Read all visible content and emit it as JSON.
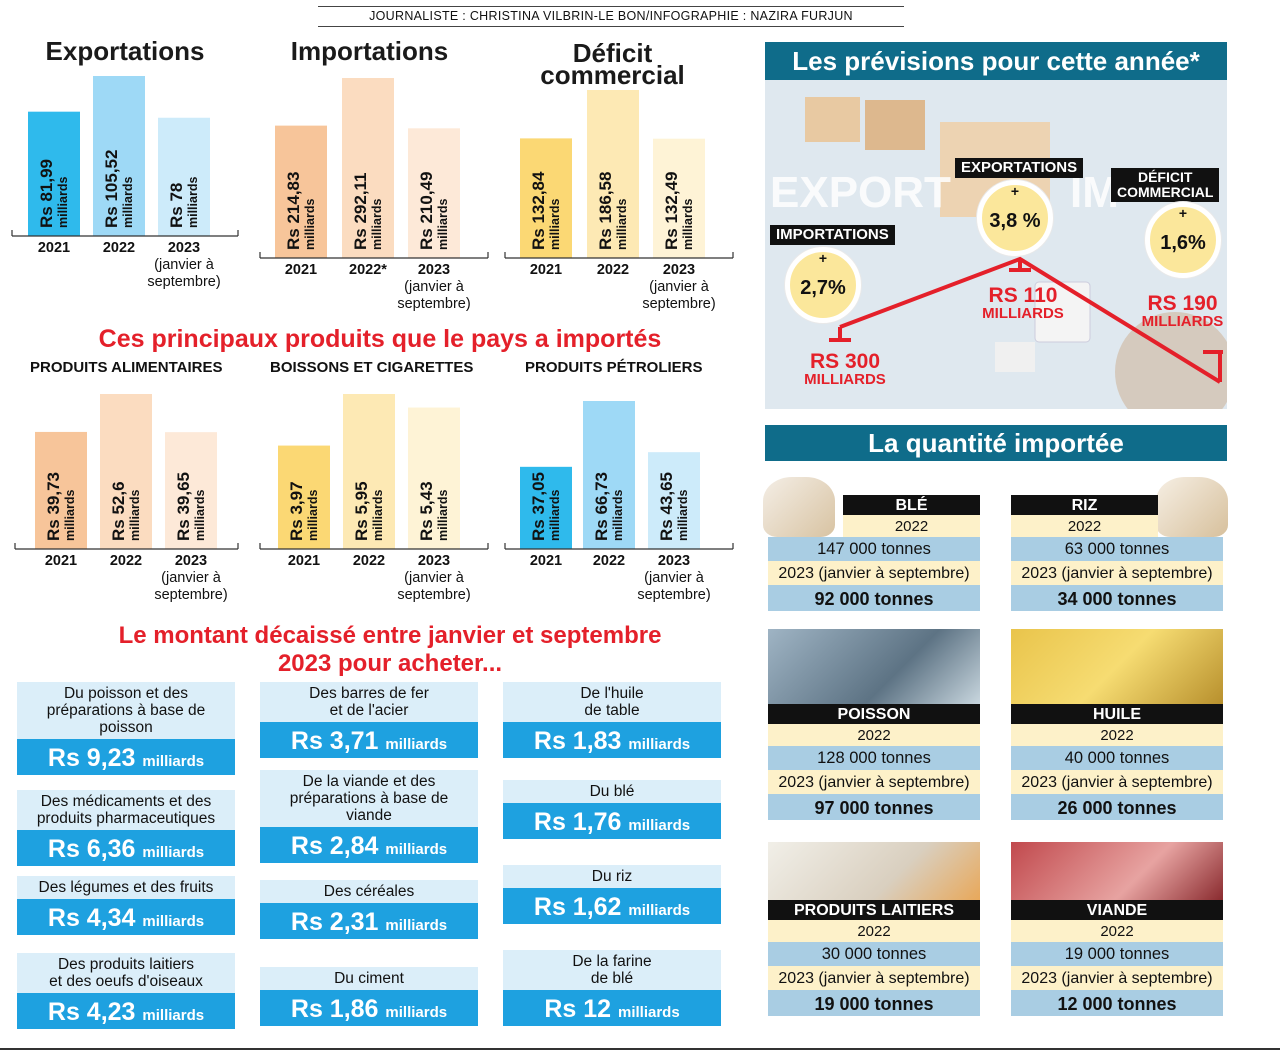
{
  "credit": "JOURNALISTE : CHRISTINA VILBRIN-LE BON/INFOGRAPHIE : NAZIRA FURJUN",
  "chart_data": [
    {
      "type": "bar",
      "title": "Exportations",
      "categories": [
        "2021",
        "2022",
        "2023\n(janvier à\nseptembre)"
      ],
      "values": [
        81.99,
        105.52,
        78
      ],
      "data_labels": [
        "Rs 81,99",
        "Rs 105,52",
        "Rs 78"
      ],
      "unit": "milliards",
      "colors": [
        "#2fbaec",
        "#9ed9f6",
        "#cdebfa"
      ]
    },
    {
      "type": "bar",
      "title": "Importations",
      "categories": [
        "2021",
        "2022*",
        "2023\n(janvier à\nseptembre)"
      ],
      "values": [
        214.83,
        292.11,
        210.49
      ],
      "data_labels": [
        "Rs 214,83",
        "Rs 292,11",
        "Rs 210,49"
      ],
      "unit": "milliards",
      "colors": [
        "#f7c59a",
        "#fbdcc0",
        "#fde9d8"
      ]
    },
    {
      "type": "bar",
      "title": "Déficit\ncommercial",
      "categories": [
        "2021",
        "2022",
        "2023\n(janvier à\nseptembre)"
      ],
      "values": [
        132.84,
        186.58,
        132.49
      ],
      "data_labels": [
        "Rs 132,84",
        "Rs 186,58",
        "Rs 132,49"
      ],
      "unit": "milliards",
      "colors": [
        "#fbd874",
        "#fde9b4",
        "#fef3d6"
      ]
    },
    {
      "type": "bar",
      "title": "PRODUITS ALIMENTAIRES",
      "categories": [
        "2021",
        "2022",
        "2023\n(janvier à\nseptembre)"
      ],
      "values": [
        39.73,
        52.6,
        39.65
      ],
      "data_labels": [
        "Rs 39,73",
        "Rs 52,6",
        "Rs 39,65"
      ],
      "unit": "milliards",
      "colors": [
        "#f7c59a",
        "#fbdcc0",
        "#fde9d8"
      ]
    },
    {
      "type": "bar",
      "title": "BOISSONS ET CIGARETTES",
      "categories": [
        "2021",
        "2022",
        "2023\n(janvier à\nseptembre)"
      ],
      "values": [
        3.97,
        5.95,
        5.43
      ],
      "data_labels": [
        "Rs 3,97",
        "Rs 5,95",
        "Rs 5,43"
      ],
      "unit": "milliards",
      "colors": [
        "#fbd874",
        "#fde9b4",
        "#fef3d6"
      ]
    },
    {
      "type": "bar",
      "title": "PRODUITS PÉTROLIERS",
      "categories": [
        "2021",
        "2022",
        "2023\n(janvier à\nseptembre)"
      ],
      "values": [
        37.05,
        66.73,
        43.65
      ],
      "data_labels": [
        "Rs 37,05",
        "Rs 66,73",
        "Rs 43,65"
      ],
      "unit": "milliards",
      "colors": [
        "#2fbaec",
        "#9ed9f6",
        "#cdebfa"
      ]
    }
  ],
  "section_products": "Ces principaux produits que le pays a importés",
  "section_amount": "Le montant décaissé entre janvier et septembre\n2023 pour acheter...",
  "amount_cards": [
    {
      "label": "Du poisson et des\npréparations à base de\npoisson",
      "value": "Rs 9,23",
      "unit": "milliards"
    },
    {
      "label": "Des médicaments et des\nproduits pharmaceutiques",
      "value": "Rs 6,36",
      "unit": "milliards"
    },
    {
      "label": "Des légumes et des fruits",
      "value": "Rs 4,34",
      "unit": "milliards"
    },
    {
      "label": "Des produits laitiers\net des oeufs d'oiseaux",
      "value": "Rs 4,23",
      "unit": "milliards"
    },
    {
      "label": "Des barres de fer\net de l'acier",
      "value": "Rs 3,71",
      "unit": "milliards"
    },
    {
      "label": "De la viande et des\npréparations à base de\nviande",
      "value": "Rs 2,84",
      "unit": "milliards"
    },
    {
      "label": "Des céréales",
      "value": "Rs 2,31",
      "unit": "milliards"
    },
    {
      "label": "Du ciment",
      "value": "Rs 1,86",
      "unit": "milliards"
    },
    {
      "label": "De l'huile\nde table",
      "value": "Rs 1,83",
      "unit": "milliards"
    },
    {
      "label": "Du blé",
      "value": "Rs 1,76",
      "unit": "milliards"
    },
    {
      "label": "Du riz",
      "value": "Rs 1,62",
      "unit": "milliards"
    },
    {
      "label": "De la farine\nde blé",
      "value": "Rs 12",
      "unit": "milliards"
    }
  ],
  "forecast": {
    "title": "Les prévisions pour cette année*",
    "bg_words": [
      "EXPORT",
      "IM"
    ],
    "importations": {
      "label": "IMPORTATIONS",
      "growth": "2,7%",
      "sign": "+",
      "amount": "RS 300",
      "unit": "MILLIARDS"
    },
    "exportations": {
      "label": "EXPORTATIONS",
      "growth": "3,8 %",
      "sign": "+",
      "amount": "RS 110",
      "unit": "MILLIARDS"
    },
    "deficit": {
      "label": "DÉFICIT\nCOMMERCIAL",
      "growth": "1,6%",
      "sign": "+",
      "amount": "RS 190",
      "unit": "MILLIARDS"
    }
  },
  "quantity": {
    "title": "La quantité importée",
    "items": [
      {
        "name": "BLÉ",
        "y1": "2022",
        "t1": "147 000 tonnes",
        "y2": "2023 (janvier à septembre)",
        "t2": "92 000 tonnes"
      },
      {
        "name": "RIZ",
        "y1": "2022",
        "t1": "63 000 tonnes",
        "y2": "2023 (janvier à septembre)",
        "t2": "34 000 tonnes"
      },
      {
        "name": "POISSON",
        "y1": "2022",
        "t1": "128 000 tonnes",
        "y2": "2023 (janvier à septembre)",
        "t2": "97 000 tonnes"
      },
      {
        "name": "HUILE",
        "y1": "2022",
        "t1": "40 000 tonnes",
        "y2": "2023 (janvier à septembre)",
        "t2": "26 000 tonnes"
      },
      {
        "name": "PRODUITS LAITIERS",
        "y1": "2022",
        "t1": "30 000 tonnes",
        "y2": "2023 (janvier à septembre)",
        "t2": "19 000 tonnes"
      },
      {
        "name": "VIANDE",
        "y1": "2022",
        "t1": "19 000 tonnes",
        "y2": "2023 (janvier à septembre)",
        "t2": "12 000 tonnes"
      }
    ]
  }
}
